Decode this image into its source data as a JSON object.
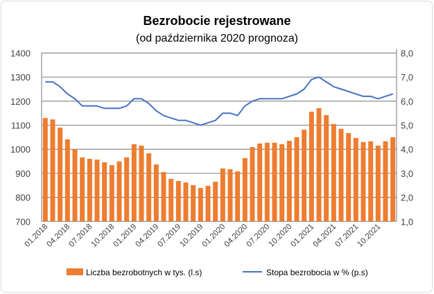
{
  "chart_data": {
    "type": "bar+line",
    "title": "Bezrobocie rejestrowane",
    "subtitle": "(od października 2020 prognoza)",
    "categories": [
      "01.2018",
      "02.2018",
      "03.2018",
      "04.2018",
      "05.2018",
      "06.2018",
      "07.2018",
      "08.2018",
      "09.2018",
      "10.2018",
      "11.2018",
      "12.2018",
      "01.2019",
      "02.2019",
      "03.2019",
      "04.2019",
      "05.2019",
      "06.2019",
      "07.2019",
      "08.2019",
      "09.2019",
      "10.2019",
      "11.2019",
      "12.2019",
      "01.2020",
      "02.2020",
      "03.2020",
      "04.2020",
      "05.2020",
      "06.2020",
      "07.2020",
      "08.2020",
      "09.2020",
      "10.2020",
      "11.2020",
      "12.2020",
      "01.2021",
      "02.2021",
      "03.2021",
      "04.2021",
      "05.2021",
      "06.2021",
      "07.2021",
      "08.2021",
      "09.2021",
      "10.2021",
      "11.2021",
      "12.2021"
    ],
    "tick_labels": [
      "01.2018",
      "04.2018",
      "07.2018",
      "10.2018",
      "01.2019",
      "04.2019",
      "07.2019",
      "10.2019",
      "01.2020",
      "04.2020",
      "07.2020",
      "10.2020",
      "01.2021",
      "04.2021",
      "07.2021",
      "10.2021"
    ],
    "series": [
      {
        "name": "Liczba bezrobotnych w tys. (l.s)",
        "type": "bar",
        "axis": "left",
        "color": "#ED7D31",
        "values": [
          1130,
          1124,
          1090,
          1041,
          1000,
          966,
          960,
          957,
          946,
          934,
          949,
          966,
          1021,
          1015,
          983,
          937,
          905,
          877,
          868,
          862,
          851,
          839,
          848,
          865,
          920,
          917,
          908,
          963,
          1009,
          1024,
          1027,
          1027,
          1021,
          1035,
          1050,
          1081,
          1156,
          1171,
          1142,
          1105,
          1085,
          1067,
          1047,
          1030,
          1033,
          1015,
          1033,
          1050
        ]
      },
      {
        "name": "Stopa bezrobocia w % (p.s)",
        "type": "line",
        "axis": "right",
        "color": "#4472C4",
        "values": [
          6.8,
          6.8,
          6.6,
          6.3,
          6.1,
          5.8,
          5.8,
          5.8,
          5.7,
          5.7,
          5.7,
          5.8,
          6.1,
          6.1,
          5.9,
          5.6,
          5.4,
          5.3,
          5.2,
          5.2,
          5.1,
          5.0,
          5.1,
          5.2,
          5.5,
          5.5,
          5.4,
          5.8,
          6.0,
          6.1,
          6.1,
          6.1,
          6.1,
          6.2,
          6.3,
          6.5,
          6.9,
          7.0,
          6.8,
          6.6,
          6.5,
          6.4,
          6.3,
          6.2,
          6.2,
          6.1,
          6.2,
          6.3
        ]
      }
    ],
    "y_left": {
      "min": 700,
      "max": 1400,
      "step": 100,
      "ticks": [
        "700",
        "800",
        "900",
        "1000",
        "1100",
        "1200",
        "1300",
        "1400"
      ]
    },
    "y_right": {
      "min": 1.0,
      "max": 8.0,
      "step": 1.0,
      "ticks": [
        "1,0",
        "2,0",
        "3,0",
        "4,0",
        "5,0",
        "6,0",
        "7,0",
        "8,0"
      ]
    },
    "grid": true,
    "legend": "bottom"
  }
}
